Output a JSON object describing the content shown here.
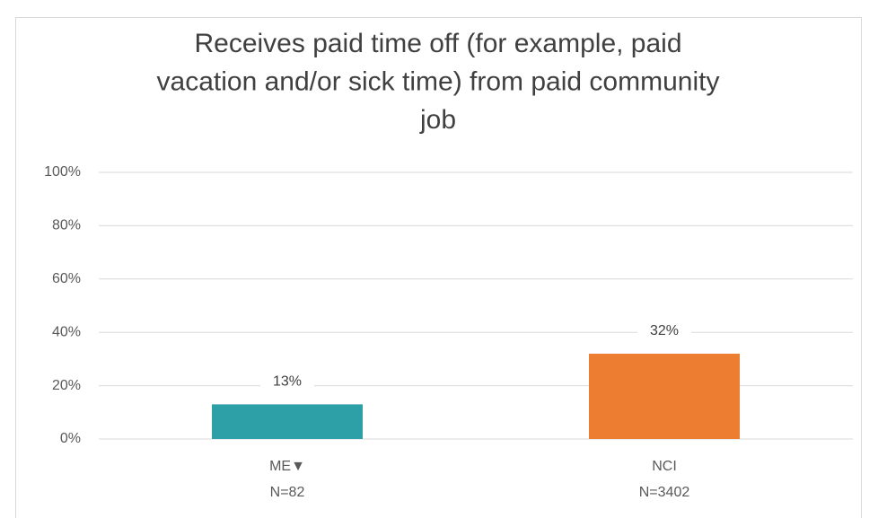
{
  "chart_data": {
    "type": "bar",
    "title": [
      "Receives paid time off (for example, paid",
      "vacation and/or sick time) from paid community",
      "job"
    ],
    "categories": [
      "ME▼",
      "NCI"
    ],
    "category_counts": [
      "N=82",
      "N=3402"
    ],
    "values": [
      13,
      32
    ],
    "value_labels": [
      "13%",
      "32%"
    ],
    "colors": [
      "#2c9fa7",
      "#ed7d31"
    ],
    "ylim": [
      0,
      100
    ],
    "yticks": [
      {
        "value": 0,
        "label": "0%"
      },
      {
        "value": 20,
        "label": "20%"
      },
      {
        "value": 40,
        "label": "40%"
      },
      {
        "value": 60,
        "label": "60%"
      },
      {
        "value": 80,
        "label": "80%"
      },
      {
        "value": 100,
        "label": "100%"
      }
    ],
    "grid": true
  }
}
